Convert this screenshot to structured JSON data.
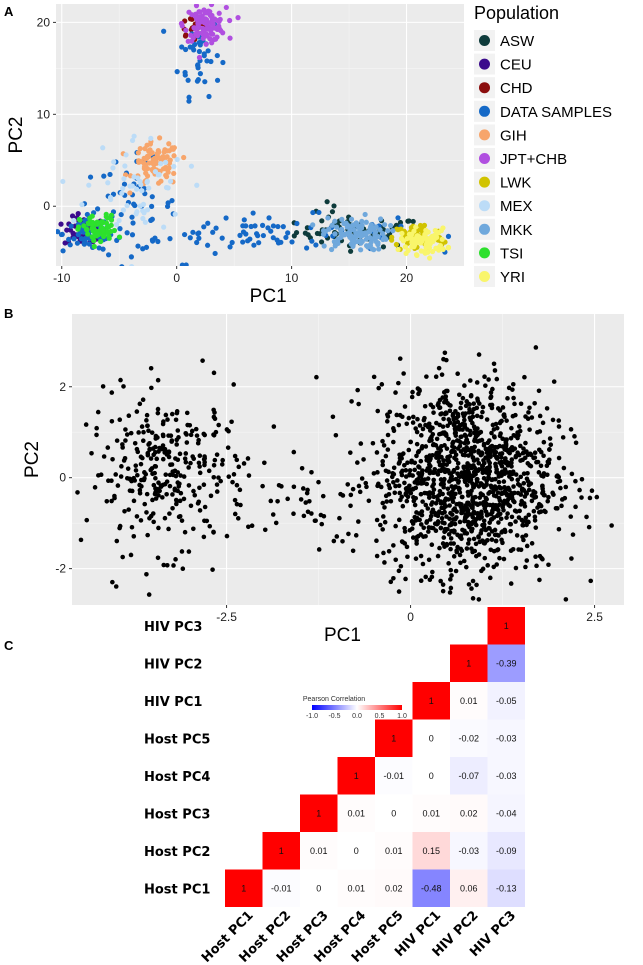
{
  "figure": {
    "labels": [
      "A",
      "B",
      "C"
    ]
  },
  "chart_data": [
    {
      "type": "scatter",
      "panel": "A",
      "xlabel": "PC1",
      "ylabel": "PC2",
      "xlim": [
        -10.5,
        25
      ],
      "ylim": [
        -6.5,
        22
      ],
      "xticks": [
        -10,
        0,
        10,
        20
      ],
      "yticks": [
        0,
        10,
        20
      ],
      "xtick_labels": [
        "-10",
        "0",
        "10",
        "20"
      ],
      "ytick_labels": [
        "0",
        "10",
        "20"
      ],
      "grid": true,
      "legend_title": "Population",
      "legend_position": "right",
      "series": [
        {
          "name": "ASW",
          "color": "#0e3b3b",
          "clusters": [
            {
              "cx": 16,
              "cy": -2.8,
              "sx": 2.8,
              "sy": 0.8,
              "n": 60
            },
            {
              "cx": 13,
              "cy": -1.5,
              "sx": 0.8,
              "sy": 1.2,
              "n": 8
            }
          ]
        },
        {
          "name": "CEU",
          "color": "#3b0b8c",
          "clusters": [
            {
              "cx": -8,
              "cy": -2.8,
              "sx": 0.9,
              "sy": 0.8,
              "n": 60
            }
          ]
        },
        {
          "name": "CHD",
          "color": "#8b0d0d",
          "clusters": [
            {
              "cx": 1.5,
              "cy": 19.5,
              "sx": 0.8,
              "sy": 0.8,
              "n": 25
            }
          ]
        },
        {
          "name": "DATA SAMPLES",
          "color": "#1569c7",
          "clusters": [
            {
              "cx": 2,
              "cy": 16.5,
              "sx": 0.9,
              "sy": 2.2,
              "n": 40
            },
            {
              "cx": 7,
              "cy": -3,
              "sx": 6,
              "sy": 1.0,
              "n": 80
            },
            {
              "cx": -4,
              "cy": 0,
              "sx": 2,
              "sy": 2.5,
              "n": 50
            },
            {
              "cx": -7.5,
              "cy": -3,
              "sx": 1.2,
              "sy": 1.0,
              "n": 60
            }
          ]
        },
        {
          "name": "GIH",
          "color": "#f7a56b",
          "clusters": [
            {
              "cx": -1.8,
              "cy": 4.5,
              "sx": 1.0,
              "sy": 1.2,
              "n": 90
            }
          ]
        },
        {
          "name": "JPT+CHB",
          "color": "#b04fe0",
          "clusters": [
            {
              "cx": 2.5,
              "cy": 19.8,
              "sx": 0.9,
              "sy": 0.9,
              "n": 110
            }
          ]
        },
        {
          "name": "LWK",
          "color": "#d1c300",
          "clusters": [
            {
              "cx": 21,
              "cy": -3.4,
              "sx": 1.1,
              "sy": 0.8,
              "n": 70
            }
          ]
        },
        {
          "name": "MEX",
          "color": "#bcdcf7",
          "clusters": [
            {
              "cx": -3.5,
              "cy": 2,
              "sx": 2.2,
              "sy": 3.0,
              "n": 60
            }
          ]
        },
        {
          "name": "MKK",
          "color": "#6fa8dc",
          "clusters": [
            {
              "cx": 15.5,
              "cy": -3,
              "sx": 1.4,
              "sy": 0.9,
              "n": 110
            }
          ]
        },
        {
          "name": "TSI",
          "color": "#2de02d",
          "clusters": [
            {
              "cx": -6.8,
              "cy": -2.6,
              "sx": 0.8,
              "sy": 0.8,
              "n": 70
            }
          ]
        },
        {
          "name": "YRI",
          "color": "#f9f56b",
          "clusters": [
            {
              "cx": 21.5,
              "cy": -3.8,
              "sx": 1.0,
              "sy": 0.7,
              "n": 80
            }
          ]
        }
      ]
    },
    {
      "type": "scatter",
      "panel": "B",
      "xlabel": "PC1",
      "ylabel": "PC2",
      "xlim": [
        -4.6,
        2.9
      ],
      "ylim": [
        -2.8,
        3.6
      ],
      "xticks": [
        -2.5,
        0,
        2.5
      ],
      "yticks": [
        -2,
        0,
        2
      ],
      "xtick_labels": [
        "-2.5",
        "0",
        "2.5"
      ],
      "ytick_labels": [
        "-2",
        "0",
        "2"
      ],
      "grid": true,
      "point_color": "#000000",
      "clusters": [
        {
          "cx": -3.3,
          "cy": 0.1,
          "sx": 0.55,
          "sy": 0.85,
          "n": 330
        },
        {
          "cx": 0.75,
          "cy": 0.0,
          "sx": 0.6,
          "sy": 1.05,
          "n": 1300
        },
        {
          "cx": -1.4,
          "cy": -0.5,
          "sx": 0.4,
          "sy": 0.6,
          "n": 40
        }
      ]
    },
    {
      "type": "heatmap",
      "panel": "C",
      "title": "Pearson Correlation",
      "colorbar_ticks": [
        "-1.0",
        "-0.5",
        "0.0",
        "0.5",
        "1.0"
      ],
      "colorbar_range": [
        -1.0,
        1.0
      ],
      "row_labels_top_to_bottom": [
        "HIV PC3",
        "HIV PC2",
        "HIV PC1",
        "Host PC5",
        "Host PC4",
        "Host PC3",
        "Host PC2",
        "Host PC1"
      ],
      "col_labels": [
        "Host PC1",
        "Host PC2",
        "Host PC3",
        "Host PC4",
        "Host PC5",
        "HIV PC1",
        "HIV PC2",
        "HIV PC3"
      ],
      "variables": [
        "Host PC1",
        "Host PC2",
        "Host PC3",
        "Host PC4",
        "Host PC5",
        "HIV PC1",
        "HIV PC2",
        "HIV PC3"
      ],
      "diagonal_label": "1",
      "lower_triangle": [
        {
          "row": "Host PC1",
          "col": "Host PC2",
          "value": -0.01,
          "label": "-0.01"
        },
        {
          "row": "Host PC1",
          "col": "Host PC3",
          "value": 0,
          "label": "0"
        },
        {
          "row": "Host PC1",
          "col": "Host PC4",
          "value": 0.01,
          "label": "0.01"
        },
        {
          "row": "Host PC1",
          "col": "Host PC5",
          "value": 0.02,
          "label": "0.02"
        },
        {
          "row": "Host PC1",
          "col": "HIV PC1",
          "value": -0.48,
          "label": "-0.48"
        },
        {
          "row": "Host PC1",
          "col": "HIV PC2",
          "value": 0.06,
          "label": "0.06"
        },
        {
          "row": "Host PC1",
          "col": "HIV PC3",
          "value": -0.13,
          "label": "-0.13"
        },
        {
          "row": "Host PC2",
          "col": "Host PC3",
          "value": 0.01,
          "label": "0.01"
        },
        {
          "row": "Host PC2",
          "col": "Host PC4",
          "value": 0,
          "label": "0"
        },
        {
          "row": "Host PC2",
          "col": "Host PC5",
          "value": 0.01,
          "label": "0.01"
        },
        {
          "row": "Host PC2",
          "col": "HIV PC1",
          "value": 0.15,
          "label": "0.15"
        },
        {
          "row": "Host PC2",
          "col": "HIV PC2",
          "value": -0.03,
          "label": "-0.03"
        },
        {
          "row": "Host PC2",
          "col": "HIV PC3",
          "value": -0.09,
          "label": "-0.09"
        },
        {
          "row": "Host PC3",
          "col": "Host PC4",
          "value": 0.01,
          "label": "0.01"
        },
        {
          "row": "Host PC3",
          "col": "Host PC5",
          "value": 0,
          "label": "0"
        },
        {
          "row": "Host PC3",
          "col": "HIV PC1",
          "value": 0.01,
          "label": "0.01"
        },
        {
          "row": "Host PC3",
          "col": "HIV PC2",
          "value": 0.02,
          "label": "0.02"
        },
        {
          "row": "Host PC3",
          "col": "HIV PC3",
          "value": -0.04,
          "label": "-0.04"
        },
        {
          "row": "Host PC4",
          "col": "Host PC5",
          "value": -0.01,
          "label": "-0.01"
        },
        {
          "row": "Host PC4",
          "col": "HIV PC1",
          "value": 0,
          "label": "0"
        },
        {
          "row": "Host PC4",
          "col": "HIV PC2",
          "value": -0.07,
          "label": "-0.07"
        },
        {
          "row": "Host PC4",
          "col": "HIV PC3",
          "value": -0.03,
          "label": "-0.03"
        },
        {
          "row": "Host PC5",
          "col": "HIV PC1",
          "value": 0,
          "label": "0"
        },
        {
          "row": "Host PC5",
          "col": "HIV PC2",
          "value": -0.02,
          "label": "-0.02"
        },
        {
          "row": "Host PC5",
          "col": "HIV PC3",
          "value": -0.03,
          "label": "-0.03"
        },
        {
          "row": "HIV PC1",
          "col": "HIV PC2",
          "value": 0.01,
          "label": "0.01"
        },
        {
          "row": "HIV PC1",
          "col": "HIV PC3",
          "value": -0.05,
          "label": "-0.05"
        },
        {
          "row": "HIV PC2",
          "col": "HIV PC3",
          "value": -0.39,
          "label": "-0.39"
        }
      ]
    }
  ]
}
